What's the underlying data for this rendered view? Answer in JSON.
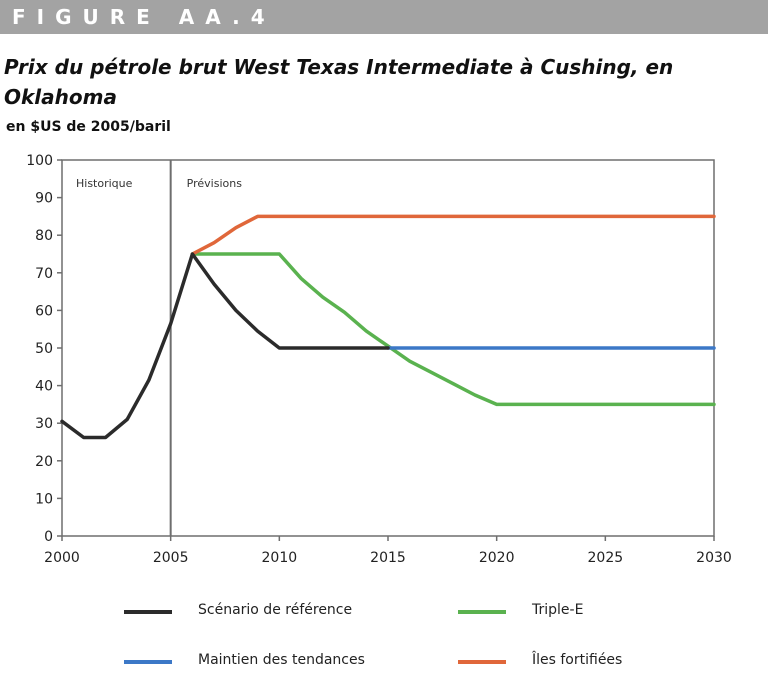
{
  "figure_label": "FIGURE AA.4",
  "chart_data": {
    "type": "line",
    "title": "Prix du pétrole brut West Texas Intermediate à Cushing, en Oklahoma",
    "ylabel": "en $US de 2005/baril",
    "xlabel": "",
    "xlim": [
      2000,
      2030
    ],
    "ylim": [
      0,
      100
    ],
    "x_ticks": [
      "2000",
      "2005",
      "2010",
      "2015",
      "2020",
      "2025",
      "2030"
    ],
    "y_ticks": [
      "0",
      "10",
      "20",
      "30",
      "40",
      "50",
      "60",
      "70",
      "80",
      "90",
      "100"
    ],
    "grid": false,
    "legend_position": "bottom",
    "divider_x": 2005,
    "regions": [
      "Historique",
      "Prévisions"
    ],
    "series": [
      {
        "name": "Scénario de référence",
        "color": "#2b2b2b",
        "points": [
          [
            2000,
            30.5
          ],
          [
            2001,
            26.2
          ],
          [
            2002,
            26.2
          ],
          [
            2003,
            31
          ],
          [
            2004,
            41.5
          ],
          [
            2005,
            56.5
          ],
          [
            2006,
            75
          ],
          [
            2007,
            67
          ],
          [
            2008,
            60
          ],
          [
            2009,
            54.5
          ],
          [
            2010,
            50
          ],
          [
            2015,
            50
          ]
        ]
      },
      {
        "name": "Triple-E",
        "color": "#5ab24f",
        "points": [
          [
            2006,
            75
          ],
          [
            2010,
            75
          ],
          [
            2011,
            68.5
          ],
          [
            2012,
            63.5
          ],
          [
            2013,
            59.5
          ],
          [
            2014,
            54.5
          ],
          [
            2015,
            50.5
          ],
          [
            2016,
            46.5
          ],
          [
            2017,
            43.5
          ],
          [
            2018,
            40.5
          ],
          [
            2019,
            37.5
          ],
          [
            2020,
            35
          ],
          [
            2030,
            35
          ]
        ]
      },
      {
        "name": "Maintien des tendances",
        "color": "#3c78c7",
        "points": [
          [
            2015,
            50
          ],
          [
            2030,
            50
          ]
        ]
      },
      {
        "name": "Îles fortifiées",
        "color": "#e0673a",
        "points": [
          [
            2006,
            75
          ],
          [
            2007,
            78
          ],
          [
            2008,
            82
          ],
          [
            2009,
            85
          ],
          [
            2030,
            85
          ]
        ]
      }
    ]
  },
  "legend": [
    {
      "label": "Scénario de référence",
      "color": "#2b2b2b"
    },
    {
      "label": "Triple-E",
      "color": "#5ab24f"
    },
    {
      "label": "Maintien des tendances",
      "color": "#3c78c7"
    },
    {
      "label": "Îles fortifiées",
      "color": "#e0673a"
    }
  ]
}
